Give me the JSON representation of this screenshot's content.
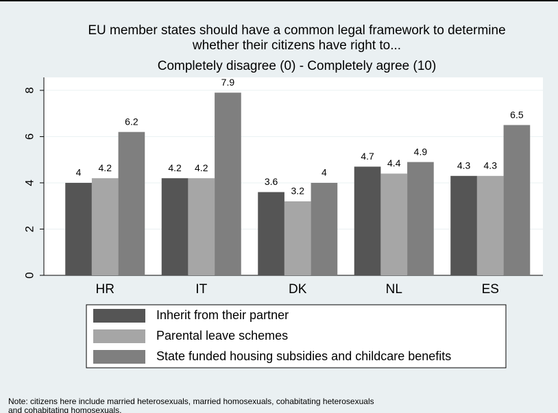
{
  "chart_data": {
    "type": "bar",
    "title": [
      "EU member states should have a common legal framework to determine",
      "whether their citizens have right to..."
    ],
    "subtitle": "Completely disagree (0) - Completely agree (10)",
    "categories": [
      "HR",
      "IT",
      "DK",
      "NL",
      "ES"
    ],
    "series": [
      {
        "name": "Inherit from their partner",
        "color": "#555555",
        "values": [
          4,
          4.2,
          3.6,
          4.7,
          4.3
        ]
      },
      {
        "name": "Parental leave schemes",
        "color": "#a6a6a6",
        "values": [
          4.2,
          4.2,
          3.2,
          4.4,
          4.3
        ]
      },
      {
        "name": "State funded housing subsidies and childcare benefits",
        "color": "#7f7f7f",
        "values": [
          6.2,
          7.9,
          4,
          4.9,
          6.5
        ]
      }
    ],
    "ylim": [
      0,
      8.56
    ],
    "yticks": [
      0,
      2,
      4,
      6,
      8
    ],
    "grid": true,
    "legend": "bottom",
    "note": [
      "Note: citizens here include married heterosexuals, married homosexuals, cohabitating heterosexuals",
      "and cohabitating homosexuals."
    ]
  }
}
